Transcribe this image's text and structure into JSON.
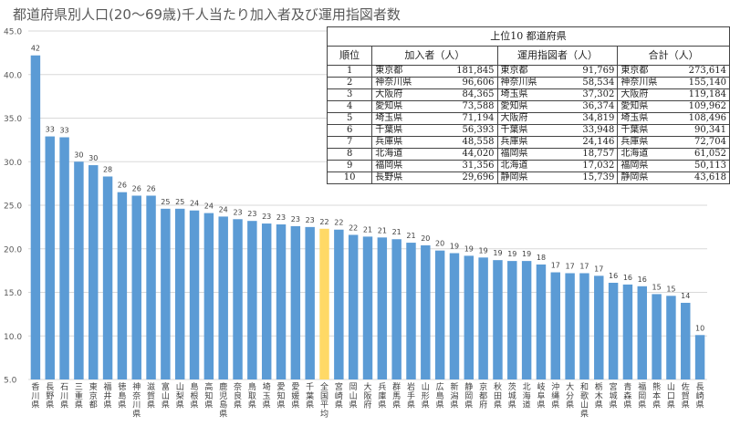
{
  "page_title": "都道府県別人口(20〜69歳)千人当たり加入者及び運用指図者数",
  "chart_data": {
    "type": "bar",
    "title": "都道府県別人口(20〜69歳)千人当たり加入者及び運用指図者数",
    "ylim": [
      5.0,
      45.0
    ],
    "yticks": [
      "5.0",
      "10.0",
      "15.0",
      "20.0",
      "25.0",
      "30.0",
      "35.0",
      "40.0",
      "45.0"
    ],
    "grid": true,
    "categories": [
      "香川県",
      "長野県",
      "石川県",
      "三重県",
      "東京都",
      "福井県",
      "徳島県",
      "神奈川県",
      "滋賀県",
      "富山県",
      "山梨県",
      "島根県",
      "高知県",
      "鹿児島県",
      "奈良県",
      "鳥取県",
      "埼玉県",
      "愛知県",
      "愛媛県",
      "千葉県",
      "全国平均",
      "宮崎県",
      "岡山県",
      "大阪府",
      "兵庫県",
      "群馬県",
      "岩手県",
      "山形県",
      "広島県",
      "新潟県",
      "静岡県",
      "京都府",
      "秋田県",
      "茨城県",
      "北海道",
      "岐阜県",
      "沖縄県",
      "大分県",
      "和歌山県",
      "栃木県",
      "宮城県",
      "青森県",
      "福岡県",
      "熊本県",
      "山口県",
      "佐賀県",
      "長崎県"
    ],
    "values": [
      42.2,
      32.9,
      32.8,
      30.0,
      29.6,
      28.3,
      26.5,
      26.1,
      26.1,
      24.6,
      24.6,
      24.4,
      24.1,
      23.7,
      23.4,
      23.2,
      22.9,
      22.8,
      22.6,
      22.5,
      22.3,
      22.2,
      21.6,
      21.4,
      21.3,
      21.1,
      20.7,
      20.4,
      19.8,
      19.5,
      19.2,
      19.0,
      18.7,
      18.6,
      18.6,
      18.2,
      17.3,
      17.2,
      17.2,
      16.9,
      16.1,
      15.9,
      15.7,
      14.8,
      14.6,
      13.8,
      10.1
    ],
    "labels": [
      "42",
      "33",
      "33",
      "30",
      "30",
      "28",
      "26",
      "26",
      "26",
      "25",
      "25",
      "24",
      "24",
      "24",
      "23",
      "23",
      "23",
      "23",
      "23",
      "23",
      "22",
      "22",
      "22",
      "21",
      "21",
      "21",
      "21",
      "20",
      "20",
      "19",
      "19",
      "19",
      "19",
      "19",
      "19",
      "18",
      "17",
      "17",
      "17",
      "17",
      "16",
      "16",
      "16",
      "15",
      "15",
      "14",
      "10"
    ],
    "highlight_category": "全国平均",
    "colors": {
      "bar": "#5b9bd5",
      "highlight": "#ffd966",
      "grid": "#d9d9d9",
      "axis_text": "#595959"
    }
  },
  "table": {
    "caption": "上位10 都道府県",
    "headers": [
      "順位",
      "加入者（人）",
      "運用指図者（人）",
      "合計（人）"
    ],
    "rows": [
      {
        "rank": "1",
        "a_name": "東京都",
        "a_val": "181,845",
        "b_name": "東京都",
        "b_val": "91,769",
        "c_name": "東京都",
        "c_val": "273,614"
      },
      {
        "rank": "2",
        "a_name": "神奈川県",
        "a_val": "96,606",
        "b_name": "神奈川県",
        "b_val": "58,534",
        "c_name": "神奈川県",
        "c_val": "155,140"
      },
      {
        "rank": "3",
        "a_name": "大阪府",
        "a_val": "84,365",
        "b_name": "埼玉県",
        "b_val": "37,302",
        "c_name": "大阪府",
        "c_val": "119,184"
      },
      {
        "rank": "4",
        "a_name": "愛知県",
        "a_val": "73,588",
        "b_name": "愛知県",
        "b_val": "36,374",
        "c_name": "愛知県",
        "c_val": "109,962"
      },
      {
        "rank": "5",
        "a_name": "埼玉県",
        "a_val": "71,194",
        "b_name": "大阪府",
        "b_val": "34,819",
        "c_name": "埼玉県",
        "c_val": "108,496"
      },
      {
        "rank": "6",
        "a_name": "千葉県",
        "a_val": "56,393",
        "b_name": "千葉県",
        "b_val": "33,948",
        "c_name": "千葉県",
        "c_val": "90,341"
      },
      {
        "rank": "7",
        "a_name": "兵庫県",
        "a_val": "48,558",
        "b_name": "兵庫県",
        "b_val": "24,146",
        "c_name": "兵庫県",
        "c_val": "72,704"
      },
      {
        "rank": "8",
        "a_name": "北海道",
        "a_val": "44,020",
        "b_name": "福岡県",
        "b_val": "18,757",
        "c_name": "北海道",
        "c_val": "61,052"
      },
      {
        "rank": "9",
        "a_name": "福岡県",
        "a_val": "31,356",
        "b_name": "北海道",
        "b_val": "17,032",
        "c_name": "福岡県",
        "c_val": "50,113"
      },
      {
        "rank": "10",
        "a_name": "長野県",
        "a_val": "29,696",
        "b_name": "静岡県",
        "b_val": "15,739",
        "c_name": "静岡県",
        "c_val": "43,618"
      }
    ]
  }
}
